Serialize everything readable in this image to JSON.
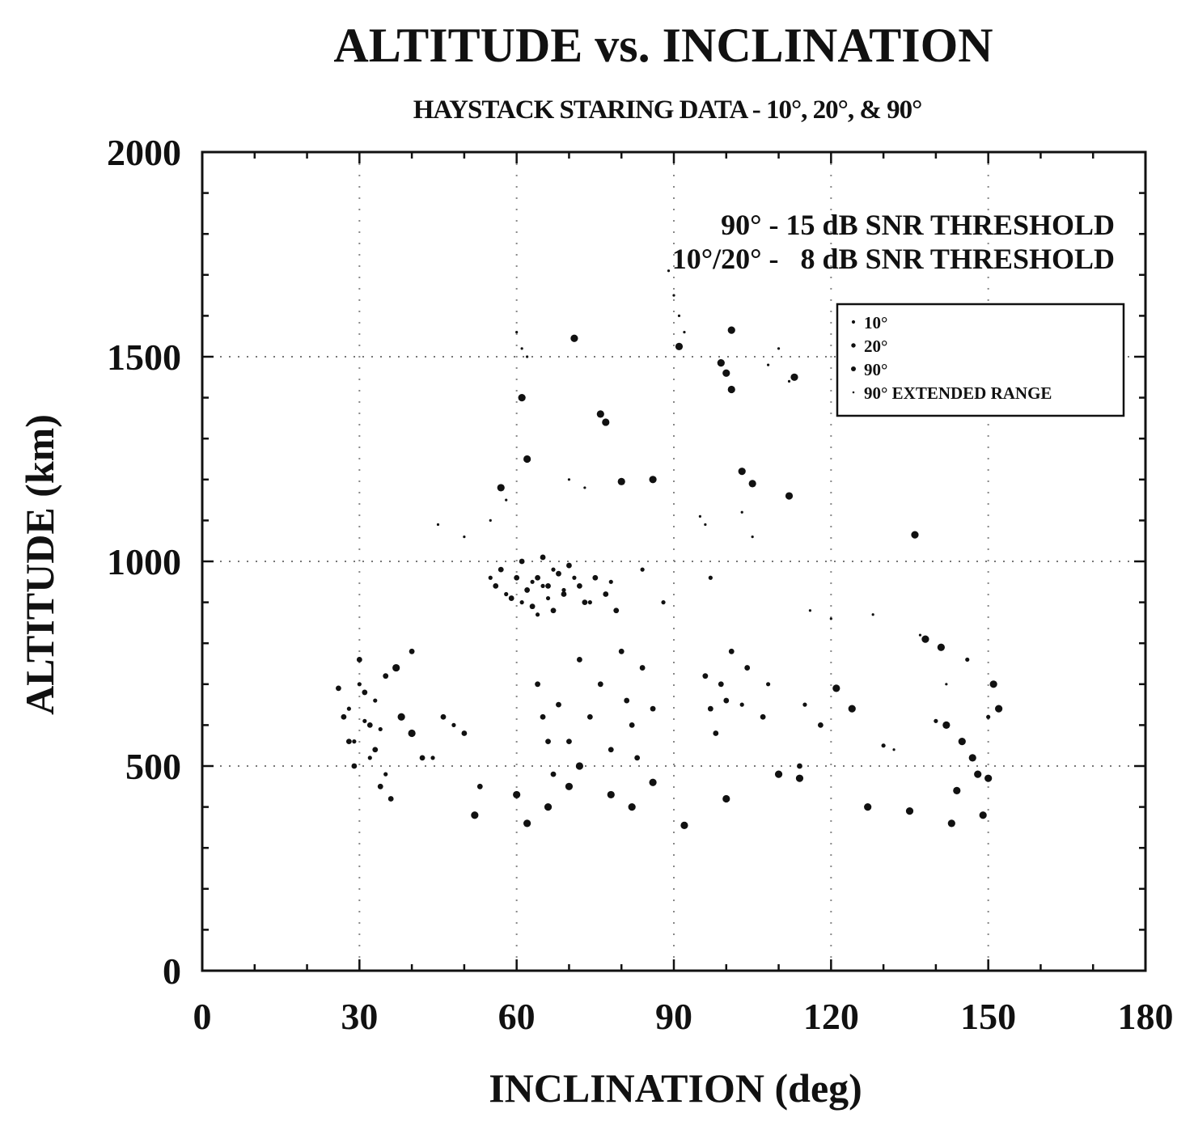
{
  "chart_data": {
    "type": "scatter",
    "title": "ALTITUDE vs. INCLINATION",
    "subtitle": "HAYSTACK STARING DATA - 10°, 20°, & 90°",
    "xlabel": "INCLINATION (deg)",
    "ylabel": "ALTITUDE (km)",
    "xlim": [
      0,
      180
    ],
    "ylim": [
      0,
      2000
    ],
    "x_ticks": [
      "0",
      "30",
      "60",
      "90",
      "120",
      "150",
      "180"
    ],
    "y_ticks": [
      "0",
      "500",
      "1000",
      "1500",
      "2000"
    ],
    "grid": "dotted at 500, 1000, 1500 km and 30, 60, 90, 120, 150 deg",
    "legend_position": "top-right",
    "annotations": [
      "90° - 15 dB SNR THRESHOLD",
      "10°/20° -   8 dB SNR THRESHOLD"
    ],
    "series": [
      {
        "name": "10°",
        "marker": "small-dot",
        "points": [
          [
            28,
            640
          ],
          [
            29,
            560
          ],
          [
            30,
            700
          ],
          [
            31,
            610
          ],
          [
            32,
            520
          ],
          [
            33,
            660
          ],
          [
            34,
            590
          ],
          [
            35,
            480
          ],
          [
            44,
            520
          ],
          [
            48,
            600
          ],
          [
            55,
            960
          ],
          [
            58,
            920
          ],
          [
            61,
            900
          ],
          [
            63,
            950
          ],
          [
            64,
            870
          ],
          [
            65,
            940
          ],
          [
            66,
            910
          ],
          [
            67,
            980
          ],
          [
            69,
            930
          ],
          [
            71,
            960
          ],
          [
            74,
            900
          ],
          [
            78,
            950
          ],
          [
            84,
            980
          ],
          [
            88,
            900
          ],
          [
            97,
            960
          ],
          [
            103,
            650
          ],
          [
            108,
            700
          ],
          [
            115,
            650
          ],
          [
            130,
            550
          ],
          [
            140,
            610
          ],
          [
            146,
            760
          ],
          [
            150,
            620
          ]
        ]
      },
      {
        "name": "20°",
        "marker": "dot",
        "points": [
          [
            26,
            690
          ],
          [
            27,
            620
          ],
          [
            28,
            560
          ],
          [
            29,
            500
          ],
          [
            30,
            760
          ],
          [
            31,
            680
          ],
          [
            32,
            600
          ],
          [
            33,
            540
          ],
          [
            34,
            450
          ],
          [
            35,
            720
          ],
          [
            36,
            420
          ],
          [
            40,
            780
          ],
          [
            42,
            520
          ],
          [
            46,
            620
          ],
          [
            50,
            580
          ],
          [
            53,
            450
          ],
          [
            56,
            940
          ],
          [
            57,
            980
          ],
          [
            59,
            910
          ],
          [
            60,
            960
          ],
          [
            61,
            1000
          ],
          [
            62,
            930
          ],
          [
            63,
            890
          ],
          [
            64,
            960
          ],
          [
            65,
            1010
          ],
          [
            66,
            940
          ],
          [
            67,
            880
          ],
          [
            68,
            970
          ],
          [
            69,
            920
          ],
          [
            70,
            990
          ],
          [
            72,
            940
          ],
          [
            73,
            900
          ],
          [
            75,
            960
          ],
          [
            77,
            920
          ],
          [
            79,
            880
          ],
          [
            64,
            700
          ],
          [
            65,
            620
          ],
          [
            66,
            560
          ],
          [
            67,
            480
          ],
          [
            68,
            650
          ],
          [
            70,
            560
          ],
          [
            72,
            760
          ],
          [
            74,
            620
          ],
          [
            76,
            700
          ],
          [
            78,
            540
          ],
          [
            80,
            780
          ],
          [
            81,
            660
          ],
          [
            82,
            600
          ],
          [
            83,
            520
          ],
          [
            84,
            740
          ],
          [
            86,
            640
          ],
          [
            96,
            720
          ],
          [
            97,
            640
          ],
          [
            98,
            580
          ],
          [
            99,
            700
          ],
          [
            100,
            660
          ],
          [
            101,
            780
          ],
          [
            104,
            740
          ],
          [
            107,
            620
          ],
          [
            114,
            500
          ],
          [
            118,
            600
          ]
        ]
      },
      {
        "name": "90°",
        "marker": "large-dot",
        "points": [
          [
            61,
            1400
          ],
          [
            62,
            1250
          ],
          [
            71,
            1545
          ],
          [
            76,
            1360
          ],
          [
            77,
            1340
          ],
          [
            57,
            1180
          ],
          [
            80,
            1195
          ],
          [
            86,
            1200
          ],
          [
            91,
            1525
          ],
          [
            99,
            1485
          ],
          [
            100,
            1460
          ],
          [
            101,
            1420
          ],
          [
            101,
            1565
          ],
          [
            103,
            1220
          ],
          [
            105,
            1190
          ],
          [
            112,
            1160
          ],
          [
            113,
            1450
          ],
          [
            136,
            1065
          ],
          [
            37,
            740
          ],
          [
            38,
            620
          ],
          [
            40,
            580
          ],
          [
            52,
            380
          ],
          [
            60,
            430
          ],
          [
            62,
            360
          ],
          [
            66,
            400
          ],
          [
            70,
            450
          ],
          [
            72,
            500
          ],
          [
            78,
            430
          ],
          [
            82,
            400
          ],
          [
            86,
            460
          ],
          [
            92,
            355
          ],
          [
            100,
            420
          ],
          [
            110,
            480
          ],
          [
            114,
            470
          ],
          [
            121,
            690
          ],
          [
            124,
            640
          ],
          [
            127,
            400
          ],
          [
            135,
            390
          ],
          [
            138,
            810
          ],
          [
            141,
            790
          ],
          [
            142,
            600
          ],
          [
            143,
            360
          ],
          [
            144,
            440
          ],
          [
            145,
            560
          ],
          [
            147,
            520
          ],
          [
            148,
            480
          ],
          [
            149,
            380
          ],
          [
            150,
            470
          ],
          [
            151,
            700
          ],
          [
            152,
            640
          ]
        ]
      },
      {
        "name": "90° EXTENDED RANGE",
        "marker": "tiny-dot",
        "points": [
          [
            60,
            1560
          ],
          [
            61,
            1520
          ],
          [
            62,
            1500
          ],
          [
            89,
            1710
          ],
          [
            90,
            1650
          ],
          [
            91,
            1600
          ],
          [
            92,
            1560
          ],
          [
            108,
            1480
          ],
          [
            110,
            1520
          ],
          [
            112,
            1440
          ],
          [
            45,
            1090
          ],
          [
            50,
            1060
          ],
          [
            55,
            1100
          ],
          [
            58,
            1150
          ],
          [
            70,
            1200
          ],
          [
            73,
            1180
          ],
          [
            95,
            1110
          ],
          [
            96,
            1090
          ],
          [
            103,
            1120
          ],
          [
            105,
            1060
          ],
          [
            116,
            880
          ],
          [
            120,
            860
          ],
          [
            128,
            870
          ],
          [
            132,
            540
          ],
          [
            137,
            820
          ],
          [
            142,
            700
          ]
        ]
      }
    ]
  }
}
